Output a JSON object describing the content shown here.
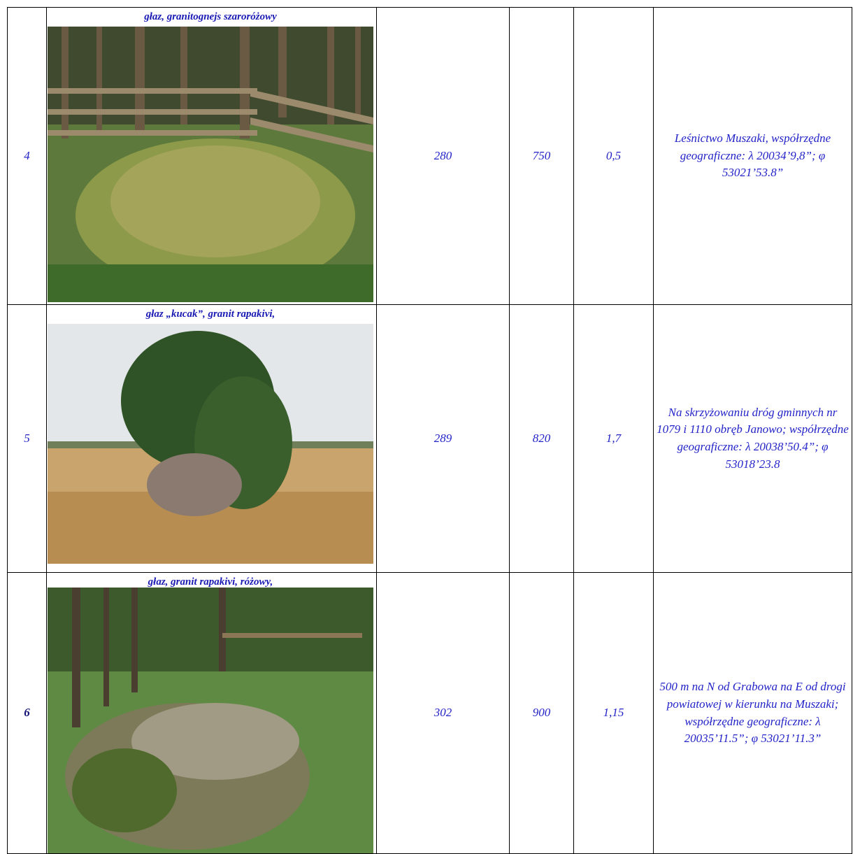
{
  "table": {
    "rows": [
      {
        "number": "4",
        "caption": "głaz, granitognejs  szaroróżowy",
        "col3": "280",
        "col4": "750",
        "col5": "0,5",
        "location": "Leśnictwo Muszaki, współrzędne geograficzne: λ 20034’9,8”; φ 53021’53.8”"
      },
      {
        "number": "5",
        "caption": "głaz „kucak”, granit rapakivi,",
        "col3": "289",
        "col4": "820",
        "col5": "1,7",
        "location": "Na skrzyżowaniu dróg gminnych nr 1079 i 1110 obręb Janowo; współrzędne geograficzne: λ 20038’50.4”; φ 53018’23.8"
      },
      {
        "number": "6",
        "caption": "głaz, granit rapakivi, różowy,",
        "col3": "302",
        "col4": "900",
        "col5": "1,15",
        "location": "500 m na N od Grabowa na E od drogi powiatowej w kierunku na Muszaki; współrzędne geograficzne: λ 20035’11.5”; φ 53021’11.3”"
      }
    ]
  }
}
